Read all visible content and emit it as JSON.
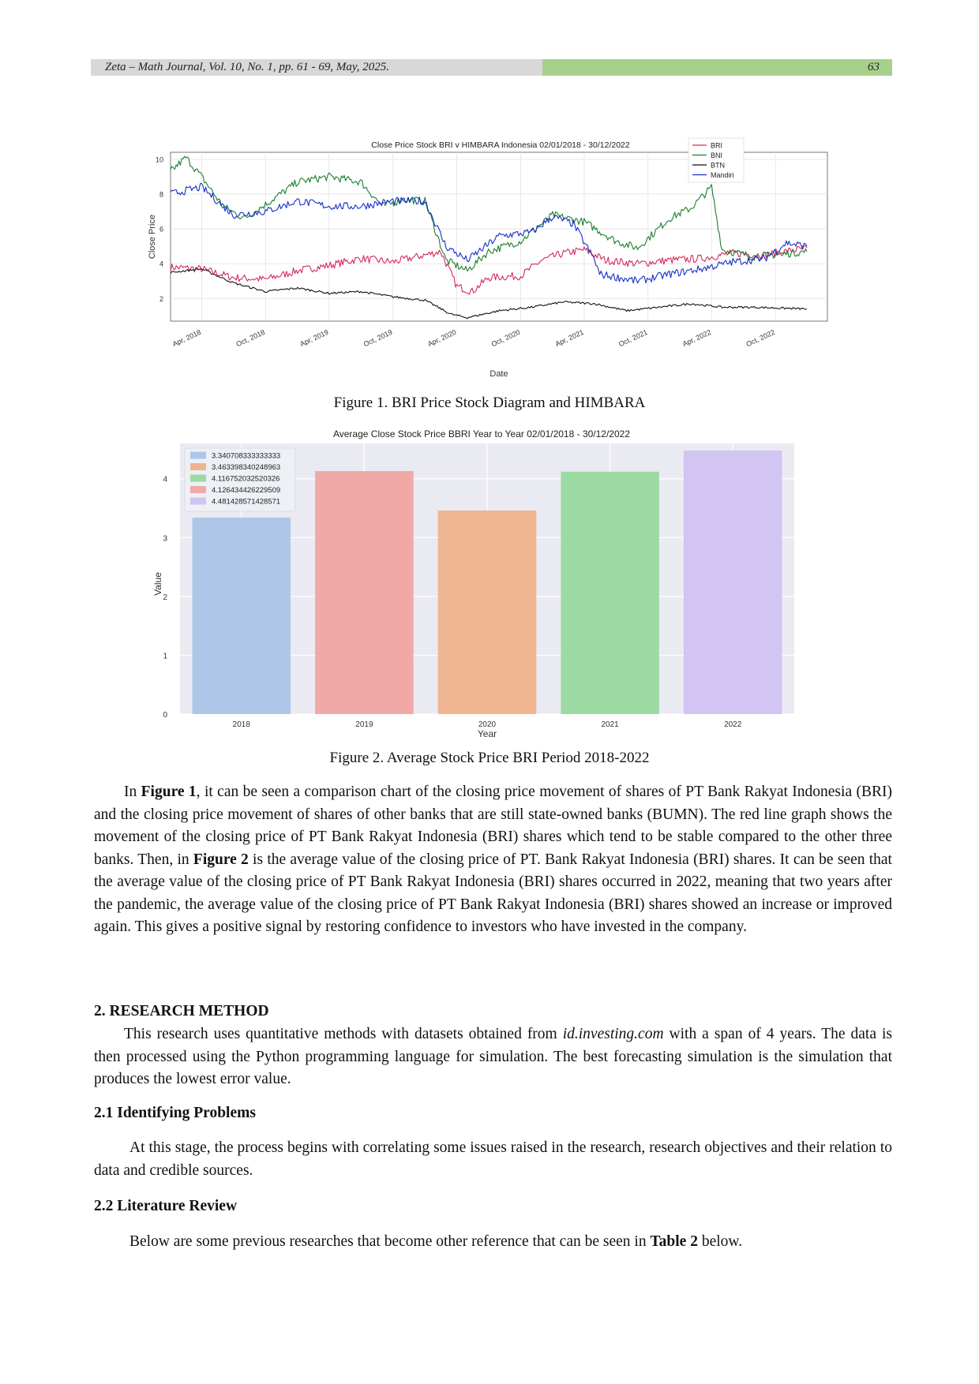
{
  "header": {
    "journal": "Zeta – Math Journal, Vol. 10, No. 1, pp. 61 - 69, May, 2025.",
    "page_number": "63"
  },
  "figure1": {
    "caption": "Figure 1. BRI Price Stock Diagram and HIMBARA"
  },
  "figure2": {
    "caption": "Figure 2. Average Stock Price BRI Period 2018-2022"
  },
  "chart_data": [
    {
      "type": "line",
      "title": "Close Price Stock BRI v HIMBARA Indonesia 02/01/2018 - 30/12/2022",
      "xlabel": "Date",
      "ylabel": "Close Price",
      "ylim": [
        0.7,
        10.4
      ],
      "x_ticks": [
        "Apr, 2018",
        "Oct, 2018",
        "Apr, 2019",
        "Oct, 2019",
        "Apr, 2020",
        "Oct, 2020",
        "Apr, 2021",
        "Oct, 2021",
        "Apr, 2022",
        "Oct, 2022"
      ],
      "y_ticks": [
        2,
        4,
        6,
        8,
        10
      ],
      "x_range": [
        "2018-01-02",
        "2022-12-30"
      ],
      "grid": true,
      "legend_position": "top-right",
      "series": [
        {
          "name": "BRI",
          "color": "#d6285a",
          "points": [
            [
              "2018-01-02",
              3.8
            ],
            [
              "2018-04-01",
              3.7
            ],
            [
              "2018-07-01",
              3.2
            ],
            [
              "2018-10-01",
              3.1
            ],
            [
              "2019-01-01",
              3.6
            ],
            [
              "2019-04-01",
              3.9
            ],
            [
              "2019-07-01",
              4.3
            ],
            [
              "2019-10-01",
              4.1
            ],
            [
              "2020-01-01",
              4.5
            ],
            [
              "2020-02-15",
              4.7
            ],
            [
              "2020-04-01",
              2.7
            ],
            [
              "2020-05-15",
              2.4
            ],
            [
              "2020-07-01",
              3.2
            ],
            [
              "2020-10-01",
              3.3
            ],
            [
              "2020-12-01",
              4.2
            ],
            [
              "2021-02-01",
              4.6
            ],
            [
              "2021-04-01",
              4.8
            ],
            [
              "2021-06-01",
              4.2
            ],
            [
              "2021-09-01",
              4.0
            ],
            [
              "2021-12-01",
              4.2
            ],
            [
              "2022-03-01",
              4.3
            ],
            [
              "2022-06-01",
              4.6
            ],
            [
              "2022-09-01",
              4.5
            ],
            [
              "2022-12-30",
              4.9
            ]
          ]
        },
        {
          "name": "BNI",
          "color": "#1b7e2e",
          "points": [
            [
              "2018-01-02",
              9.3
            ],
            [
              "2018-02-15",
              10.1
            ],
            [
              "2018-04-01",
              9.0
            ],
            [
              "2018-06-01",
              7.3
            ],
            [
              "2018-08-01",
              6.6
            ],
            [
              "2018-10-01",
              7.4
            ],
            [
              "2019-01-01",
              8.7
            ],
            [
              "2019-04-01",
              9.0
            ],
            [
              "2019-07-01",
              8.7
            ],
            [
              "2019-09-01",
              7.3
            ],
            [
              "2019-11-01",
              7.7
            ],
            [
              "2020-01-01",
              7.6
            ],
            [
              "2020-03-01",
              4.2
            ],
            [
              "2020-05-01",
              3.6
            ],
            [
              "2020-07-01",
              4.7
            ],
            [
              "2020-10-01",
              5.3
            ],
            [
              "2021-01-01",
              6.8
            ],
            [
              "2021-04-01",
              6.4
            ],
            [
              "2021-07-01",
              5.3
            ],
            [
              "2021-09-01",
              4.9
            ],
            [
              "2021-12-01",
              6.6
            ],
            [
              "2022-02-01",
              7.2
            ],
            [
              "2022-04-01",
              8.4
            ],
            [
              "2022-05-01",
              4.8
            ],
            [
              "2022-08-01",
              4.4
            ],
            [
              "2022-12-30",
              4.7
            ]
          ]
        },
        {
          "name": "BTN",
          "color": "#111111",
          "points": [
            [
              "2018-01-02",
              3.5
            ],
            [
              "2018-04-01",
              3.7
            ],
            [
              "2018-07-01",
              2.9
            ],
            [
              "2018-10-01",
              2.4
            ],
            [
              "2019-01-01",
              2.6
            ],
            [
              "2019-04-01",
              2.3
            ],
            [
              "2019-07-01",
              2.4
            ],
            [
              "2019-10-01",
              2.1
            ],
            [
              "2020-01-01",
              1.9
            ],
            [
              "2020-03-15",
              1.1
            ],
            [
              "2020-05-01",
              0.9
            ],
            [
              "2020-08-01",
              1.3
            ],
            [
              "2020-11-01",
              1.5
            ],
            [
              "2021-02-01",
              1.8
            ],
            [
              "2021-05-01",
              1.7
            ],
            [
              "2021-08-01",
              1.3
            ],
            [
              "2021-11-01",
              1.5
            ],
            [
              "2022-02-01",
              1.7
            ],
            [
              "2022-05-01",
              1.5
            ],
            [
              "2022-08-01",
              1.5
            ],
            [
              "2022-12-30",
              1.4
            ]
          ]
        },
        {
          "name": "Mandiri",
          "color": "#1530c8",
          "points": [
            [
              "2018-01-02",
              8.0
            ],
            [
              "2018-04-01",
              8.4
            ],
            [
              "2018-07-01",
              6.8
            ],
            [
              "2018-10-01",
              7.0
            ],
            [
              "2019-01-01",
              7.6
            ],
            [
              "2019-04-01",
              7.3
            ],
            [
              "2019-07-01",
              7.3
            ],
            [
              "2019-10-01",
              7.6
            ],
            [
              "2020-01-01",
              7.6
            ],
            [
              "2020-03-01",
              5.0
            ],
            [
              "2020-05-01",
              4.2
            ],
            [
              "2020-08-01",
              5.6
            ],
            [
              "2020-11-01",
              5.8
            ],
            [
              "2021-01-01",
              6.7
            ],
            [
              "2021-03-01",
              6.3
            ],
            [
              "2021-05-01",
              4.2
            ],
            [
              "2021-05-15",
              3.4
            ],
            [
              "2021-09-01",
              3.0
            ],
            [
              "2021-12-01",
              3.4
            ],
            [
              "2022-03-01",
              3.7
            ],
            [
              "2022-06-01",
              4.1
            ],
            [
              "2022-09-01",
              4.3
            ],
            [
              "2022-11-01",
              5.2
            ],
            [
              "2022-12-30",
              5.0
            ]
          ]
        }
      ]
    },
    {
      "type": "bar",
      "title": "Average Close Stock Price BBRI Year to Year 02/01/2018 - 30/12/2022",
      "xlabel": "Year",
      "ylabel": "Value",
      "ylim": [
        0,
        4.6
      ],
      "y_ticks": [
        0,
        1,
        2,
        3,
        4
      ],
      "categories": [
        "2018",
        "2019",
        "2020",
        "2021",
        "2022"
      ],
      "values": [
        3.34,
        4.13,
        3.46,
        4.12,
        4.48
      ],
      "colors": [
        "#aec7e8",
        "#f1a9a8",
        "#efb591",
        "#9bdba3",
        "#d2c4f3"
      ],
      "grid": true,
      "legend_position": "top-left",
      "legend": [
        {
          "label": "3.340708333333333",
          "color": "#aec7e8"
        },
        {
          "label": "3.463398340248963",
          "color": "#efb591"
        },
        {
          "label": "4.116752032520326",
          "color": "#9bdba3"
        },
        {
          "label": "4.126434426229509",
          "color": "#f1a9a8"
        },
        {
          "label": "4.481428571428571",
          "color": "#d2c4f3"
        }
      ]
    }
  ],
  "paragraph1": {
    "p1": "In ",
    "b1": "Figure 1",
    "p2": ", it can be seen a comparison chart of the closing price movement of shares of PT Bank Rakyat Indonesia (BRI) and the closing price movement of shares of other banks that are still state-owned banks (BUMN). The red line graph shows the movement of the closing price of PT Bank Rakyat Indonesia (BRI) shares which tend to be stable compared to the other three banks. Then, in ",
    "b2": "Figure 2",
    "p3": " is the average value of the closing price of PT. Bank Rakyat Indonesia (BRI) shares. It can be seen that the average value of the closing price of PT Bank Rakyat Indonesia (BRI) shares occurred in 2022, meaning that two years after the pandemic, the average value of the closing price of PT Bank Rakyat Indonesia (BRI) shares showed an increase or improved again. This gives a positive signal by restoring confidence to investors who have invested in the company."
  },
  "section2": {
    "heading": "2.  RESEARCH METHOD",
    "t1": "This research uses quantitative methods with datasets obtained from ",
    "site": "id.investing.com",
    "t2": " with a span of 4 years. The data is then processed using the Python programming language for simulation. The best forecasting simulation is the simulation that produces the lowest error value."
  },
  "section21": {
    "heading": "2.1 Identifying Problems",
    "text": "At this stage, the process begins with correlating some issues raised in the research, research objectives and their relation to data and credible sources."
  },
  "section22": {
    "heading": "2.2 Literature Review",
    "t1": "Below are some previous researches that become other reference that can be seen in ",
    "b1": "Table 2",
    "t2": " below."
  }
}
